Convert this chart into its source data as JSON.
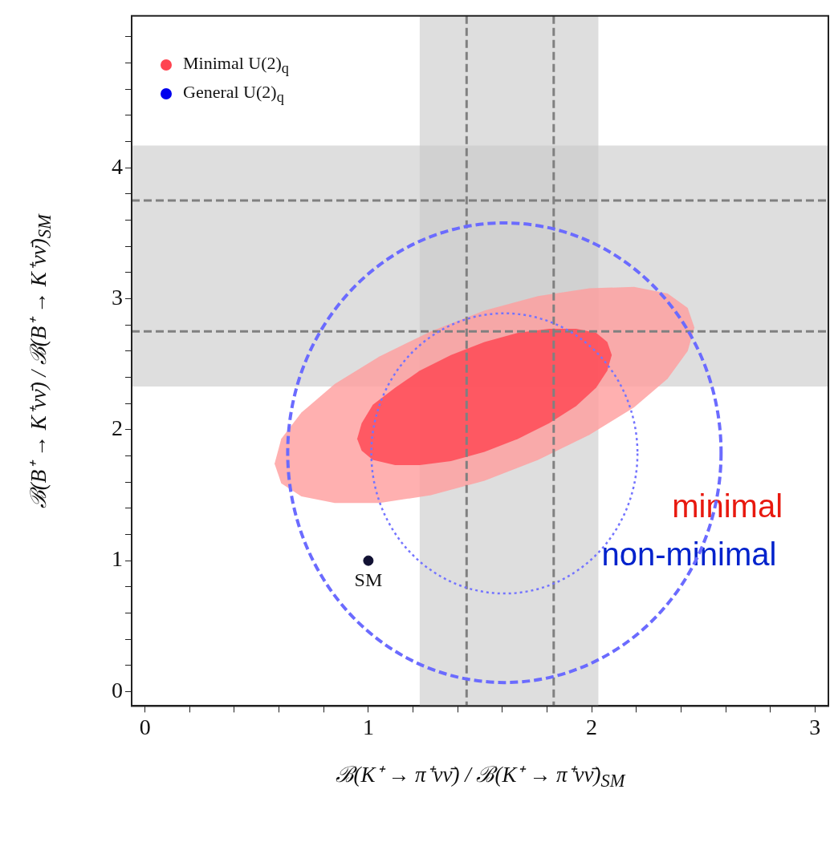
{
  "chart_data": {
    "type": "area",
    "xlabel": "ℬ(K⁺ → π⁺νν̄) / ℬ(K⁺ → π⁺νν̄)$_{SM}$",
    "ylabel": "ℬ(B⁺ → K⁺νν̄) / ℬ(B⁺ → K⁺νν̄)$_{SM}$",
    "xlim": [
      -0.06,
      3.06
    ],
    "ylim": [
      -0.11,
      5.16
    ],
    "xticks": [
      0,
      {
        "value": 0.2,
        "label": null
      },
      {
        "value": 0.4,
        "label": null
      },
      {
        "value": 0.6,
        "label": null
      },
      {
        "value": 0.8,
        "label": null
      },
      1,
      {
        "value": 1.2,
        "label": null
      },
      {
        "value": 1.4,
        "label": null
      },
      {
        "value": 1.6,
        "label": null
      },
      {
        "value": 1.8,
        "label": null
      },
      2,
      {
        "value": 2.2,
        "label": null
      },
      {
        "value": 2.4,
        "label": null
      },
      {
        "value": 2.6,
        "label": null
      },
      {
        "value": 2.8,
        "label": null
      },
      3
    ],
    "yticks": [
      0,
      {
        "value": 0.2,
        "label": null
      },
      {
        "value": 0.4,
        "label": null
      },
      {
        "value": 0.6,
        "label": null
      },
      {
        "value": 0.8,
        "label": null
      },
      1,
      {
        "value": 1.2,
        "label": null
      },
      {
        "value": 1.4,
        "label": null
      },
      {
        "value": 1.6,
        "label": null
      },
      {
        "value": 1.8,
        "label": null
      },
      2,
      {
        "value": 2.2,
        "label": null
      },
      {
        "value": 2.4,
        "label": null
      },
      {
        "value": 2.6,
        "label": null
      },
      {
        "value": 2.8,
        "label": null
      },
      3,
      {
        "value": 3.2,
        "label": null
      },
      {
        "value": 3.4,
        "label": null
      },
      {
        "value": 3.6,
        "label": null
      },
      {
        "value": 3.8,
        "label": null
      },
      4,
      {
        "value": 4.2,
        "label": null
      },
      {
        "value": 4.4,
        "label": null
      },
      {
        "value": 4.6,
        "label": null
      },
      {
        "value": 4.8,
        "label": null
      },
      {
        "value": 5,
        "label": null
      }
    ],
    "legend": "top left",
    "bands": [
      {
        "axis": "x",
        "from": 1.23,
        "to": 2.03,
        "color": "#c8c8c8"
      },
      {
        "axis": "y",
        "from": 2.33,
        "to": 4.17,
        "color": "#c8c8c8"
      }
    ],
    "ref_lines": [
      {
        "axis": "x",
        "value": 1.44,
        "color": "#808080",
        "line_style": "dashed"
      },
      {
        "axis": "x",
        "value": 1.83,
        "color": "#808080",
        "line_style": "dashed"
      },
      {
        "axis": "y",
        "value": 2.75,
        "color": "#808080",
        "line_style": "dashed"
      },
      {
        "axis": "y",
        "value": 3.75,
        "color": "#808080",
        "line_style": "dashed"
      }
    ],
    "series": [
      {
        "color": "#ff9c9c",
        "x": [
          2.46,
          2.43,
          2.34,
          2.19,
          1.99,
          1.76,
          1.52,
          1.28,
          1.05,
          0.85,
          0.7,
          0.61,
          0.58,
          0.61,
          0.7,
          0.85,
          1.05,
          1.28,
          1.52,
          1.76,
          1.99,
          2.19,
          2.34,
          2.43,
          2.46
        ],
        "values": [
          2.78,
          2.93,
          3.04,
          3.09,
          3.08,
          3.02,
          2.91,
          2.75,
          2.56,
          2.35,
          2.13,
          1.93,
          1.74,
          1.59,
          1.49,
          1.44,
          1.44,
          1.5,
          1.61,
          1.77,
          1.96,
          2.17,
          2.39,
          2.6,
          2.78
        ]
      },
      {
        "name": "Minimal U(2)$_{q}$",
        "color": "#ff4450",
        "x": [
          2.09,
          2.07,
          2.02,
          1.93,
          1.81,
          1.67,
          1.52,
          1.37,
          1.23,
          1.12,
          1.02,
          0.97,
          0.95,
          0.97,
          1.02,
          1.12,
          1.23,
          1.37,
          1.52,
          1.67,
          1.81,
          1.93,
          2.02,
          2.07,
          2.09
        ],
        "values": [
          2.57,
          2.67,
          2.74,
          2.77,
          2.77,
          2.74,
          2.67,
          2.57,
          2.45,
          2.32,
          2.19,
          2.05,
          1.93,
          1.84,
          1.77,
          1.73,
          1.73,
          1.76,
          1.83,
          1.93,
          2.05,
          2.18,
          2.32,
          2.45,
          2.57
        ]
      },
      {
        "type": "scatter",
        "color": "#111133",
        "marker": "circle",
        "x": [
          1
        ],
        "values": [
          1
        ]
      }
    ],
    "annotations": [
      {
        "text": "SM",
        "x": 1,
        "y": 1
      },
      "minimal",
      "non-minimal",
      "General U(2)$_{q}$"
    ]
  }
}
